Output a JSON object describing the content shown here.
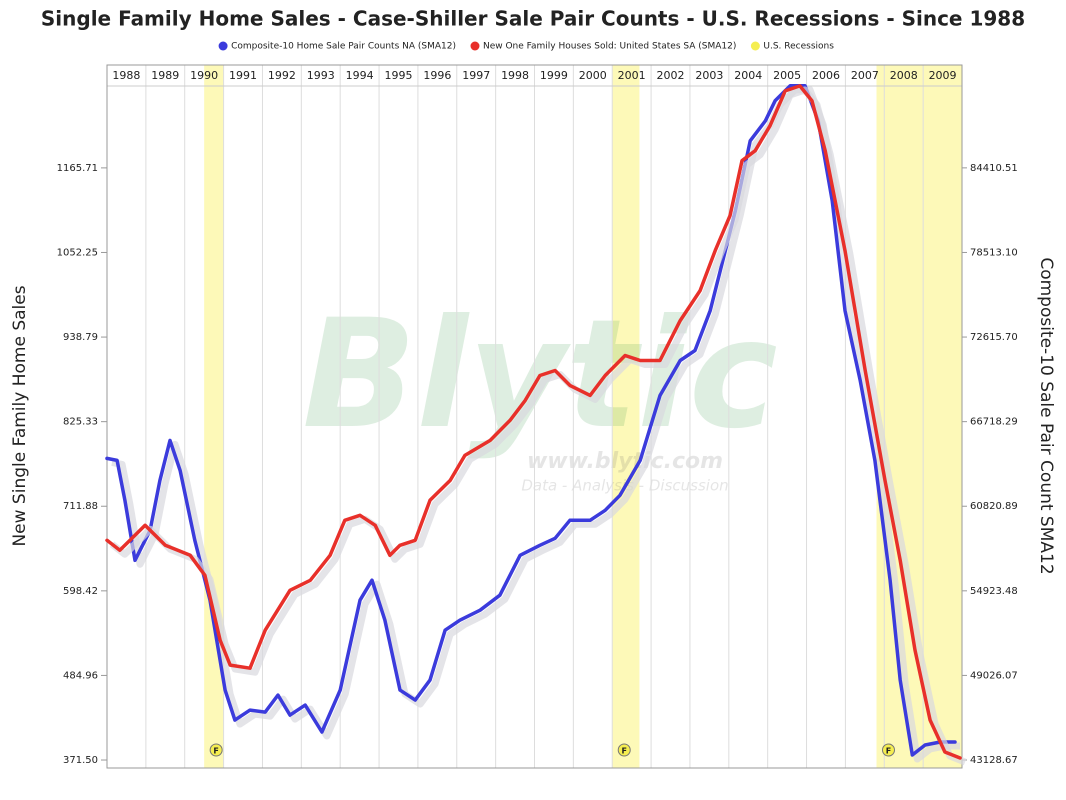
{
  "chart_data": {
    "type": "line",
    "title": "Single Family Home Sales - Case-Shiller Sale Pair Counts - U.S. Recessions - Since 1988",
    "ylabel": "New Single Family Home Sales",
    "y2label": "Composite-10 Sale Pair Count SMA12",
    "watermark": {
      "brand": "Blytic",
      "url": "www.blytic.com",
      "tagline": "Data - Analysis - Discussion"
    },
    "years": [
      1988,
      1989,
      1990,
      1991,
      1992,
      1993,
      1994,
      1995,
      1996,
      1997,
      1998,
      1999,
      2000,
      2001,
      2002,
      2003,
      2004,
      2005,
      2006,
      2007,
      2008,
      2009
    ],
    "xlim": [
      1988,
      2010
    ],
    "ylim": [
      360.8,
      1303.7
    ],
    "yticks": [
      {
        "value": 371.5,
        "label": "371.50"
      },
      484.96,
      598.42,
      711.88,
      825.33,
      938.79,
      1052.25,
      1165.71
    ],
    "y2lim": [
      42571.7,
      91582
    ],
    "y2ticks": [
      43128.67,
      49026.07,
      54923.48,
      60820.89,
      66718.29,
      {
        "value": 72615.7,
        "label": "72615.70"
      },
      {
        "value": 78513.1,
        "label": "78513.10"
      },
      84410.51
    ],
    "grid": true,
    "legend": "top",
    "recessions": {
      "name": "U.S. Recessions",
      "color": "#fdf9b8",
      "marker": "F",
      "periods": [
        {
          "start": 1990.5,
          "end": 1991.0
        },
        {
          "start": 2001.0,
          "end": 2001.7
        },
        {
          "start": 2007.8,
          "end": 2010
        }
      ]
    },
    "series": [
      {
        "name": "Composite-10 Home Sale Pair Counts NA (SMA12)",
        "color": "#3b3bdc",
        "axis": "y2",
        "x": [
          1988.0,
          1988.26,
          1988.46,
          1988.72,
          1989.11,
          1989.36,
          1989.62,
          1989.88,
          1990.26,
          1990.65,
          1991.04,
          1991.29,
          1991.68,
          1992.07,
          1992.4,
          1992.71,
          1993.1,
          1993.53,
          1994.0,
          1994.51,
          1994.82,
          1995.15,
          1995.54,
          1995.93,
          1996.31,
          1996.7,
          1997.08,
          1997.6,
          1998.11,
          1998.63,
          1999.14,
          1999.53,
          1999.91,
          2000.43,
          2000.82,
          2001.2,
          2001.72,
          2002.23,
          2002.75,
          2003.13,
          2003.52,
          2003.78,
          2004.17,
          2004.55,
          2004.94,
          2005.19,
          2005.58,
          2005.96,
          2006.3,
          2006.66,
          2006.99,
          2007.38,
          2007.76,
          2008.15,
          2008.41,
          2008.72,
          2009.05,
          2009.44,
          2009.82
        ],
        "values": [
          64157,
          64018,
          61233,
          57055,
          59144,
          62625,
          65411,
          63322,
          58448,
          54270,
          48003,
          45914,
          46611,
          46471,
          47655,
          46262,
          46959,
          45079,
          48003,
          54270,
          55662,
          52877,
          48003,
          47307,
          48699,
          52181,
          52877,
          53574,
          54618,
          57403,
          58099,
          58587,
          59840,
          59840,
          60537,
          61581,
          64018,
          68544,
          70981,
          71677,
          74463,
          77248,
          81426,
          86300,
          87692,
          89085,
          90129,
          90129,
          87692,
          82122,
          74463,
          69588,
          64018,
          55662,
          48699,
          43477,
          44173,
          44382,
          44382
        ]
      },
      {
        "name": "New One Family Houses Sold: United States SA (SMA12)",
        "color": "#e8302a",
        "axis": "y",
        "x": [
          1988.0,
          1988.33,
          1988.98,
          1989.5,
          1990.14,
          1990.52,
          1990.91,
          1991.17,
          1991.68,
          1992.07,
          1992.71,
          1993.23,
          1993.74,
          1994.12,
          1994.51,
          1994.9,
          1995.28,
          1995.54,
          1995.93,
          1996.31,
          1996.83,
          1997.21,
          1997.86,
          1998.37,
          1998.76,
          1999.14,
          1999.53,
          1999.91,
          2000.43,
          2000.82,
          2001.33,
          2001.72,
          2002.23,
          2002.75,
          2003.26,
          2003.65,
          2004.03,
          2004.34,
          2004.68,
          2005.06,
          2005.45,
          2005.83,
          2006.14,
          2006.48,
          2006.99,
          2007.51,
          2008.02,
          2008.41,
          2008.79,
          2009.18,
          2009.56,
          2009.95
        ],
        "values": [
          666.2,
          652.8,
          686.3,
          659.5,
          646.1,
          619.3,
          532.3,
          498.8,
          494.7,
          545.6,
          599.2,
          612.6,
          646.1,
          693.0,
          699.7,
          686.3,
          646.1,
          659.5,
          666.2,
          719.8,
          746.6,
          780.1,
          800.2,
          827.0,
          853.8,
          887.2,
          893.9,
          873.9,
          860.5,
          887.2,
          914.0,
          907.3,
          907.3,
          960.9,
          1001.1,
          1054.7,
          1101.6,
          1175.3,
          1188.7,
          1222.1,
          1269.0,
          1275.7,
          1255.6,
          1188.7,
          1054.7,
          893.9,
          746.6,
          639.4,
          518.9,
          425.1,
          382.2,
          374.2
        ]
      }
    ]
  }
}
